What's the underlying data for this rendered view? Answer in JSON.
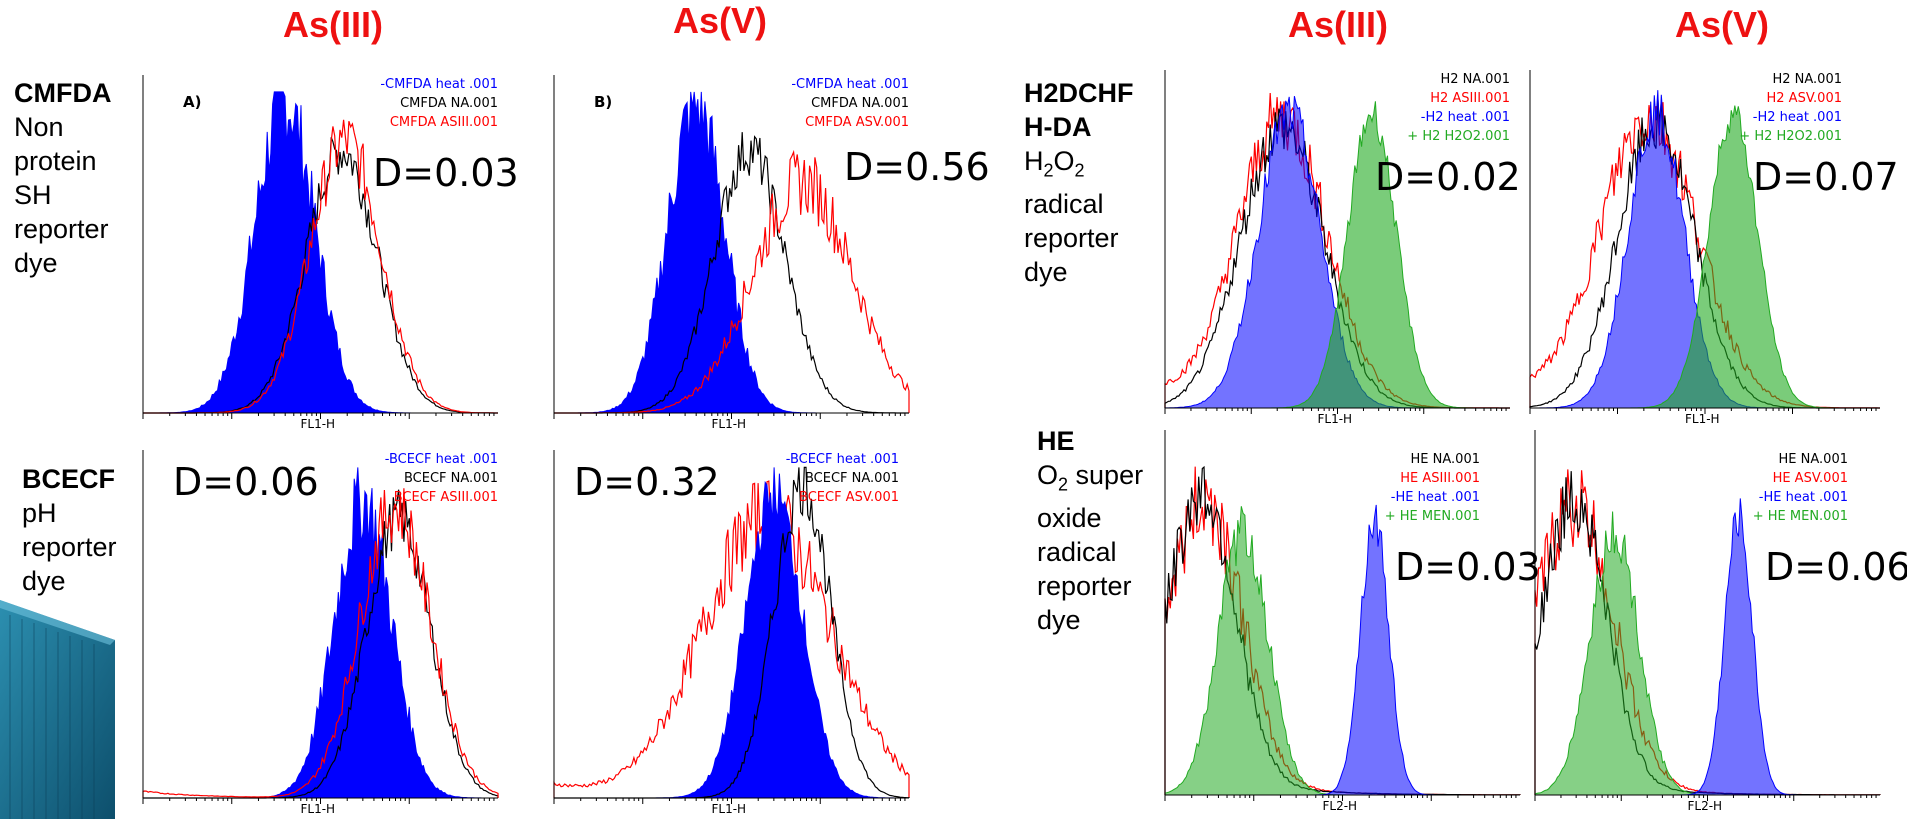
{
  "column_titles": {
    "left_as3": "As(III)",
    "left_as5": "As(V)",
    "right_as3": "As(III)",
    "right_as5": "As(V)"
  },
  "dyes": {
    "cmfda": {
      "name": "CMFDA",
      "lines": [
        "Non",
        "protein",
        "SH",
        "reporter",
        "dye"
      ]
    },
    "bcecf": {
      "name": "BCECF",
      "lines": [
        "pH",
        "reporter",
        "dye"
      ]
    },
    "h2dchf": {
      "name_lines": [
        "H2DCHF",
        "H-DA"
      ],
      "h2o2": "H2O2",
      "lines": [
        "radical",
        "reporter",
        "dye"
      ]
    },
    "he": {
      "name": "HE",
      "o2": "O2",
      "o2_suffix": "super",
      "lines": [
        "oxide",
        "radical",
        "reporter",
        "dye"
      ]
    }
  },
  "colors": {
    "title_red": "#ee1111",
    "blue": "#0000ff",
    "red": "#ff0000",
    "black": "#000000",
    "green": "#22aa22"
  },
  "panels": {
    "p1": {
      "tag": "A)",
      "d_value": "D=0.03",
      "xlabel": "FL1-H",
      "legend": [
        {
          "text": "-CMFDA heat .001",
          "color": "blue"
        },
        {
          "text": "CMFDA NA.001",
          "color": "black"
        },
        {
          "text": "CMFDA ASIII.001",
          "color": "red"
        }
      ]
    },
    "p2": {
      "tag": "B)",
      "d_value": "D=0.56",
      "xlabel": "FL1-H",
      "legend": [
        {
          "text": "-CMFDA heat .001",
          "color": "blue"
        },
        {
          "text": "CMFDA NA.001",
          "color": "black"
        },
        {
          "text": "CMFDA ASV.001",
          "color": "red"
        }
      ]
    },
    "p3": {
      "d_value": "D=0.06",
      "xlabel": "FL1-H",
      "legend": [
        {
          "text": "-BCECF heat .001",
          "color": "blue"
        },
        {
          "text": "BCECF NA.001",
          "color": "black"
        },
        {
          "text": "BCECF ASIII.001",
          "color": "red"
        }
      ]
    },
    "p4": {
      "d_value": "D=0.32",
      "xlabel": "FL1-H",
      "legend": [
        {
          "text": "-BCECF heat .001",
          "color": "blue"
        },
        {
          "text": "BCECF NA.001",
          "color": "black"
        },
        {
          "text": "BCECF ASV.001",
          "color": "red"
        }
      ]
    },
    "p5": {
      "d_value": "D=0.02",
      "xlabel": "FL1-H",
      "legend": [
        {
          "text": "H2 NA.001",
          "color": "black"
        },
        {
          "text": "H2 ASIII.001",
          "color": "red"
        },
        {
          "text": "-H2 heat .001",
          "color": "blue"
        },
        {
          "text": "+ H2 H2O2.001",
          "color": "green"
        }
      ]
    },
    "p6": {
      "d_value": "D=0.07",
      "xlabel": "FL1-H",
      "legend": [
        {
          "text": "H2 NA.001",
          "color": "black"
        },
        {
          "text": "H2 ASV.001",
          "color": "red"
        },
        {
          "text": "-H2 heat .001",
          "color": "blue"
        },
        {
          "text": "+ H2 H2O2.001",
          "color": "green"
        }
      ]
    },
    "p7": {
      "d_value": "D=0.03",
      "xlabel": "FL2-H",
      "legend": [
        {
          "text": "HE NA.001",
          "color": "black"
        },
        {
          "text": "HE ASIII.001",
          "color": "red"
        },
        {
          "text": "-HE heat .001",
          "color": "blue"
        },
        {
          "text": "+ HE MEN.001",
          "color": "green"
        }
      ]
    },
    "p8": {
      "d_value": "D=0.06",
      "xlabel": "FL2-H",
      "legend": [
        {
          "text": "HE NA.001",
          "color": "black"
        },
        {
          "text": "HE ASV.001",
          "color": "red"
        },
        {
          "text": "-HE heat .001",
          "color": "blue"
        },
        {
          "text": "+ HE MEN.001",
          "color": "green"
        }
      ]
    }
  }
}
